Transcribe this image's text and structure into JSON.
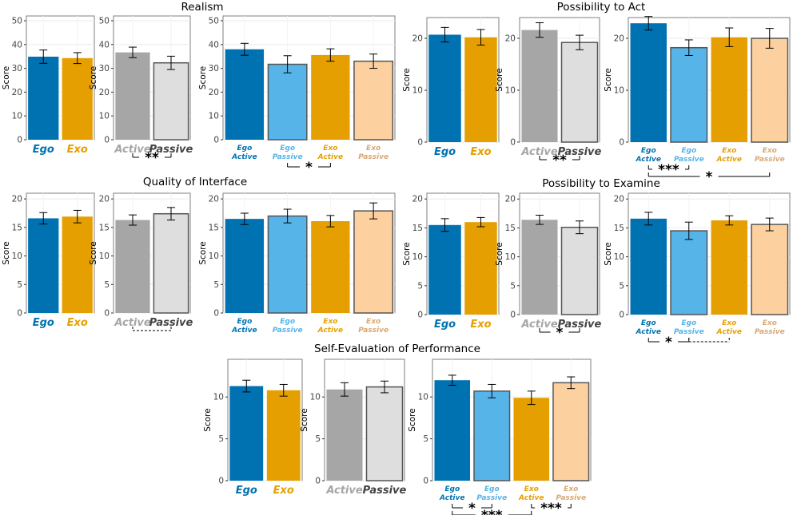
{
  "colors": {
    "Ego": "#0072B2",
    "Exo": "#E69F00",
    "Active": "#A6A6A6",
    "Passive": "#DEDEDE",
    "Ego Active": "#0072B2",
    "Ego Passive": "#56B4E9",
    "Exo Active": "#E69F00",
    "Exo Passive": "#FDD09F"
  },
  "label_colors": {
    "Ego": "#0072B2",
    "Exo": "#E69F00",
    "Active": "#A6A6A6",
    "Passive": "#444444",
    "Ego Active": "#0072B2",
    "Ego Passive": "#56B4E9",
    "Exo Active": "#E69F00",
    "Exo Passive": "#D9A875"
  },
  "chart_data": [
    {
      "type": "bar",
      "group": "Realism",
      "title": "Realism",
      "ylabel": "Score",
      "ylim": [
        0,
        52
      ],
      "yticks": [
        0,
        10,
        20,
        30,
        40,
        50
      ],
      "panels": [
        {
          "categories": [
            "Ego",
            "Exo"
          ],
          "values": [
            34.9,
            34.3
          ],
          "errors": [
            2.8,
            2.3
          ],
          "brackets": []
        },
        {
          "categories": [
            "Active",
            "Passive"
          ],
          "values": [
            36.7,
            32.3
          ],
          "errors": [
            2.2,
            2.8
          ],
          "brackets": [
            {
              "from": 0,
              "to": 1,
              "label": "**",
              "style": "solid",
              "level": 0
            }
          ]
        },
        {
          "categories": [
            "Ego Active",
            "Ego Passive",
            "Exo Active",
            "Exo Passive"
          ],
          "values": [
            38.0,
            31.7,
            35.6,
            33.0
          ],
          "errors": [
            2.5,
            3.6,
            2.6,
            3.0
          ],
          "brackets": [
            {
              "from": 1,
              "to": 2,
              "label": "*",
              "style": "solid",
              "level": 0
            }
          ]
        }
      ]
    },
    {
      "type": "bar",
      "group": "Possibility to Act",
      "title": "Possibility to Act",
      "ylabel": "Score",
      "ylim": [
        0,
        24
      ],
      "yticks": [
        0,
        10,
        20
      ],
      "panels": [
        {
          "categories": [
            "Ego",
            "Exo"
          ],
          "values": [
            20.7,
            20.2
          ],
          "errors": [
            1.4,
            1.5
          ],
          "brackets": []
        },
        {
          "categories": [
            "Active",
            "Passive"
          ],
          "values": [
            21.6,
            19.2
          ],
          "errors": [
            1.4,
            1.4
          ],
          "brackets": [
            {
              "from": 0,
              "to": 1,
              "label": "**",
              "style": "solid",
              "level": 0
            }
          ]
        },
        {
          "categories": [
            "Ego Active",
            "Ego Passive",
            "Exo Active",
            "Exo Passive"
          ],
          "values": [
            22.9,
            18.2,
            20.2,
            20.0
          ],
          "errors": [
            1.3,
            1.5,
            1.8,
            1.9
          ],
          "brackets": [
            {
              "from": 0,
              "to": 1,
              "label": "***",
              "style": "solid",
              "level": 0
            },
            {
              "from": 0,
              "to": 3,
              "label": "*",
              "style": "solid",
              "level": 1
            }
          ]
        }
      ]
    },
    {
      "type": "bar",
      "group": "Quality of Interface",
      "title": "Quality of Interface",
      "ylabel": "Score",
      "ylim": [
        0,
        21
      ],
      "yticks": [
        0,
        5,
        10,
        15,
        20
      ],
      "panels": [
        {
          "categories": [
            "Ego",
            "Exo"
          ],
          "values": [
            16.6,
            16.9
          ],
          "errors": [
            1.0,
            1.1
          ],
          "brackets": []
        },
        {
          "categories": [
            "Active",
            "Passive"
          ],
          "values": [
            16.3,
            17.4
          ],
          "errors": [
            0.9,
            1.1
          ],
          "brackets": [
            {
              "from": 0,
              "to": 1,
              "label": "",
              "style": "dashed",
              "level": 0
            }
          ]
        },
        {
          "categories": [
            "Ego Active",
            "Ego Passive",
            "Exo Active",
            "Exo Passive"
          ],
          "values": [
            16.5,
            17.0,
            16.1,
            17.9
          ],
          "errors": [
            1.0,
            1.2,
            1.0,
            1.4
          ],
          "brackets": []
        }
      ]
    },
    {
      "type": "bar",
      "group": "Possibility to Examine",
      "title": "Possibility to Examine",
      "ylabel": "Score",
      "ylim": [
        0,
        21
      ],
      "yticks": [
        0,
        5,
        10,
        15,
        20
      ],
      "panels": [
        {
          "categories": [
            "Ego",
            "Exo"
          ],
          "values": [
            15.5,
            16.0
          ],
          "errors": [
            1.1,
            0.8
          ],
          "brackets": []
        },
        {
          "categories": [
            "Active",
            "Passive"
          ],
          "values": [
            16.4,
            15.1
          ],
          "errors": [
            0.8,
            1.1
          ],
          "brackets": [
            {
              "from": 0,
              "to": 1,
              "label": "*",
              "style": "solid",
              "level": 0
            }
          ]
        },
        {
          "categories": [
            "Ego Active",
            "Ego Passive",
            "Exo Active",
            "Exo Passive"
          ],
          "values": [
            16.6,
            14.5,
            16.3,
            15.6
          ],
          "errors": [
            1.1,
            1.5,
            0.8,
            1.1
          ],
          "brackets": [
            {
              "from": 0,
              "to": 1,
              "label": "*",
              "style": "solid",
              "level": 0
            },
            {
              "from": 1,
              "to": 2,
              "label": "",
              "style": "dashed",
              "level": 0
            }
          ]
        }
      ]
    },
    {
      "type": "bar",
      "group": "Self-Evaluation of Performance",
      "title": "Self-Evaluation of Performance",
      "ylabel": "Score",
      "ylim": [
        0,
        14.5
      ],
      "yticks": [
        0,
        5,
        10
      ],
      "panels": [
        {
          "categories": [
            "Ego",
            "Exo"
          ],
          "values": [
            11.3,
            10.8
          ],
          "errors": [
            0.7,
            0.7
          ],
          "brackets": []
        },
        {
          "categories": [
            "Active",
            "Passive"
          ],
          "values": [
            10.9,
            11.2
          ],
          "errors": [
            0.8,
            0.7
          ],
          "brackets": []
        },
        {
          "categories": [
            "Ego Active",
            "Ego Passive",
            "Exo Active",
            "Exo Passive"
          ],
          "values": [
            12.0,
            10.7,
            9.9,
            11.7
          ],
          "errors": [
            0.6,
            0.8,
            0.8,
            0.7
          ],
          "brackets": [
            {
              "from": 0,
              "to": 1,
              "label": "*",
              "style": "solid",
              "level": 0
            },
            {
              "from": 0,
              "to": 2,
              "label": "***",
              "style": "solid",
              "level": 1
            },
            {
              "from": 2,
              "to": 3,
              "label": "***",
              "style": "solid",
              "level": 0
            }
          ]
        }
      ]
    }
  ]
}
